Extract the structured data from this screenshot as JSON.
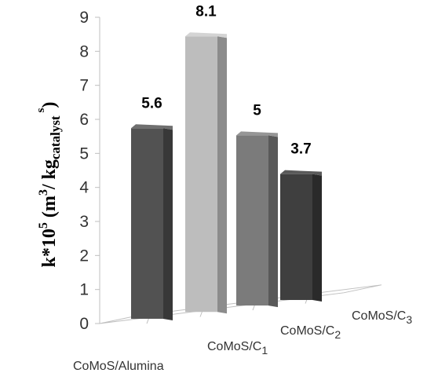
{
  "chart_data": {
    "type": "bar",
    "style": "3d-column",
    "categories": [
      {
        "base": "CoMoS/Alumina",
        "sub": ""
      },
      {
        "base": "CoMoS/C",
        "sub": "1"
      },
      {
        "base": "CoMoS/C",
        "sub": "2"
      },
      {
        "base": "CoMoS/C",
        "sub": "3"
      }
    ],
    "values": [
      5.6,
      8.1,
      5,
      3.7
    ],
    "value_labels": [
      "5.6",
      "8.1",
      "5",
      "3.7"
    ],
    "ylim": [
      0,
      9
    ],
    "yticks": [
      "0",
      "1",
      "2",
      "3",
      "4",
      "5",
      "6",
      "7",
      "8",
      "9"
    ],
    "ylabel": {
      "prefix": "k*10",
      "exp": "5",
      "paren_open": " (m",
      "m_exp": "3",
      "mid": "/ kg",
      "sub": "catalyst",
      "tail_sup": "s",
      "paren_close": ")"
    },
    "bar_colors": [
      {
        "front": "#525252",
        "side": "#383838",
        "top": "#6f6f6f"
      },
      {
        "front": "#bdbdbd",
        "side": "#8c8c8c",
        "top": "#d4d4d4"
      },
      {
        "front": "#7b7b7b",
        "side": "#595959",
        "top": "#969696"
      },
      {
        "front": "#3f3f3f",
        "side": "#2a2a2a",
        "top": "#5a5a5a"
      }
    ],
    "grid": false,
    "legend": "none"
  }
}
